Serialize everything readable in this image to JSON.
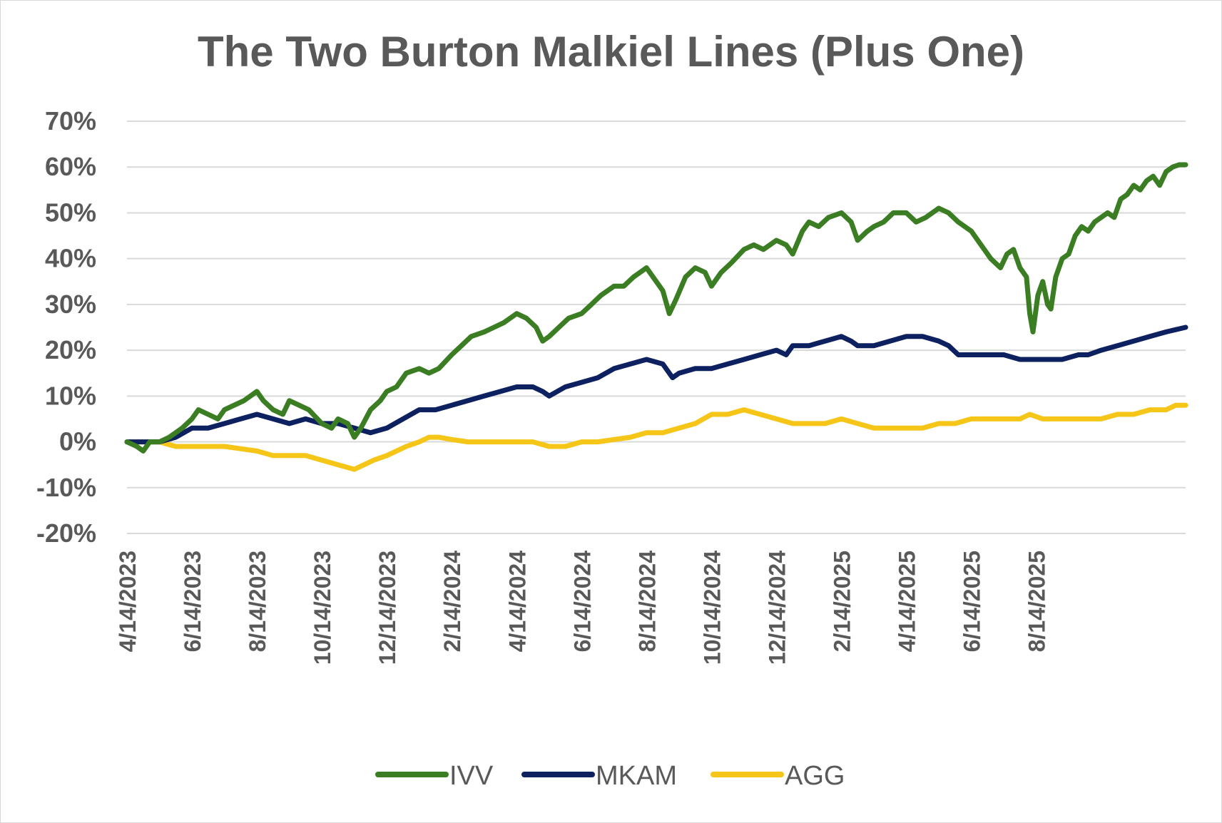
{
  "chart_data": {
    "type": "line",
    "title": "The Two Burton Malkiel Lines (Plus One)",
    "xlabel": "",
    "ylabel": "",
    "ylim": [
      -20,
      70
    ],
    "yticks": [
      70,
      60,
      50,
      40,
      30,
      20,
      10,
      0,
      -10,
      -20
    ],
    "ytick_labels": [
      "70%",
      "60%",
      "50%",
      "40%",
      "30%",
      "20%",
      "10%",
      "0%",
      "-10%",
      "-20%"
    ],
    "x_tick_labels": [
      "4/14/2023",
      "6/14/2023",
      "8/14/2023",
      "10/14/2023",
      "12/14/2023",
      "2/14/2024",
      "4/14/2024",
      "6/14/2024",
      "8/14/2024",
      "10/14/2024",
      "12/14/2024",
      "2/14/2025",
      "4/14/2025",
      "6/14/2025",
      "8/14/2025"
    ],
    "x_months": [
      0,
      2,
      4,
      6,
      8,
      10,
      12,
      14,
      16,
      18,
      20,
      22,
      24,
      26,
      28
    ],
    "grid": true,
    "legend_position": "bottom",
    "series": [
      {
        "name": "IVV",
        "color": "#3a7d22",
        "points": [
          [
            0,
            0
          ],
          [
            0.3,
            -1
          ],
          [
            0.5,
            -2
          ],
          [
            0.7,
            0
          ],
          [
            1,
            0
          ],
          [
            1.3,
            1
          ],
          [
            1.7,
            3
          ],
          [
            2,
            5
          ],
          [
            2.2,
            7
          ],
          [
            2.5,
            6
          ],
          [
            2.8,
            5
          ],
          [
            3,
            7
          ],
          [
            3.3,
            8
          ],
          [
            3.6,
            9
          ],
          [
            4,
            11
          ],
          [
            4.2,
            9
          ],
          [
            4.5,
            7
          ],
          [
            4.8,
            6
          ],
          [
            5,
            9
          ],
          [
            5.3,
            8
          ],
          [
            5.6,
            7
          ],
          [
            6,
            4
          ],
          [
            6.3,
            3
          ],
          [
            6.5,
            5
          ],
          [
            6.8,
            4
          ],
          [
            7,
            1
          ],
          [
            7.2,
            3
          ],
          [
            7.5,
            7
          ],
          [
            7.8,
            9
          ],
          [
            8,
            11
          ],
          [
            8.3,
            12
          ],
          [
            8.6,
            15
          ],
          [
            9,
            16
          ],
          [
            9.3,
            15
          ],
          [
            9.6,
            16
          ],
          [
            10,
            19
          ],
          [
            10.3,
            21
          ],
          [
            10.6,
            23
          ],
          [
            11,
            24
          ],
          [
            11.3,
            25
          ],
          [
            11.6,
            26
          ],
          [
            12,
            28
          ],
          [
            12.3,
            27
          ],
          [
            12.6,
            25
          ],
          [
            12.8,
            22
          ],
          [
            13,
            23
          ],
          [
            13.3,
            25
          ],
          [
            13.6,
            27
          ],
          [
            14,
            28
          ],
          [
            14.3,
            30
          ],
          [
            14.6,
            32
          ],
          [
            15,
            34
          ],
          [
            15.3,
            34
          ],
          [
            15.6,
            36
          ],
          [
            16,
            38
          ],
          [
            16.2,
            36
          ],
          [
            16.5,
            33
          ],
          [
            16.7,
            28
          ],
          [
            16.9,
            31
          ],
          [
            17.2,
            36
          ],
          [
            17.5,
            38
          ],
          [
            17.8,
            37
          ],
          [
            18,
            34
          ],
          [
            18.3,
            37
          ],
          [
            18.6,
            39
          ],
          [
            19,
            42
          ],
          [
            19.3,
            43
          ],
          [
            19.6,
            42
          ],
          [
            20,
            44
          ],
          [
            20.3,
            43
          ],
          [
            20.5,
            41
          ],
          [
            20.8,
            46
          ],
          [
            21,
            48
          ],
          [
            21.3,
            47
          ],
          [
            21.6,
            49
          ],
          [
            22,
            50
          ],
          [
            22.3,
            48
          ],
          [
            22.5,
            44
          ],
          [
            22.8,
            46
          ],
          [
            23,
            47
          ],
          [
            23.3,
            48
          ],
          [
            23.6,
            50
          ],
          [
            24,
            50
          ],
          [
            24.3,
            48
          ],
          [
            24.6,
            49
          ],
          [
            25,
            51
          ],
          [
            25.3,
            50
          ],
          [
            25.6,
            48
          ],
          [
            26,
            46
          ],
          [
            26.3,
            43
          ],
          [
            26.6,
            40
          ],
          [
            26.9,
            38
          ],
          [
            27.1,
            41
          ],
          [
            27.3,
            42
          ],
          [
            27.5,
            38
          ],
          [
            27.7,
            36
          ],
          [
            27.8,
            28
          ],
          [
            27.9,
            24
          ],
          [
            28.05,
            32
          ],
          [
            28.2,
            35
          ],
          [
            28.35,
            30
          ],
          [
            28.45,
            29
          ],
          [
            28.6,
            36
          ],
          [
            28.8,
            40
          ],
          [
            29,
            41
          ],
          [
            29.2,
            45
          ],
          [
            29.4,
            47
          ],
          [
            29.6,
            46
          ],
          [
            29.8,
            48
          ],
          [
            30,
            49
          ],
          [
            30.2,
            50
          ],
          [
            30.4,
            49
          ],
          [
            30.6,
            53
          ],
          [
            30.8,
            54
          ],
          [
            31,
            56
          ],
          [
            31.2,
            55
          ],
          [
            31.4,
            57
          ],
          [
            31.6,
            58
          ],
          [
            31.8,
            56
          ],
          [
            32,
            59
          ],
          [
            32.2,
            60
          ],
          [
            32.4,
            60.5
          ],
          [
            32.6,
            60.5
          ]
        ]
      },
      {
        "name": "MKAM",
        "color": "#0d2060",
        "points": [
          [
            0,
            0
          ],
          [
            0.5,
            0
          ],
          [
            1,
            0
          ],
          [
            1.5,
            1
          ],
          [
            2,
            3
          ],
          [
            2.5,
            3
          ],
          [
            3,
            4
          ],
          [
            3.5,
            5
          ],
          [
            4,
            6
          ],
          [
            4.5,
            5
          ],
          [
            5,
            4
          ],
          [
            5.5,
            5
          ],
          [
            6,
            4
          ],
          [
            6.5,
            4
          ],
          [
            7,
            3
          ],
          [
            7.5,
            2
          ],
          [
            8,
            3
          ],
          [
            8.5,
            5
          ],
          [
            9,
            7
          ],
          [
            9.5,
            7
          ],
          [
            10,
            8
          ],
          [
            10.5,
            9
          ],
          [
            11,
            10
          ],
          [
            11.5,
            11
          ],
          [
            12,
            12
          ],
          [
            12.5,
            12
          ],
          [
            12.8,
            11
          ],
          [
            13,
            10
          ],
          [
            13.5,
            12
          ],
          [
            14,
            13
          ],
          [
            14.5,
            14
          ],
          [
            15,
            16
          ],
          [
            15.5,
            17
          ],
          [
            16,
            18
          ],
          [
            16.5,
            17
          ],
          [
            16.8,
            14
          ],
          [
            17,
            15
          ],
          [
            17.5,
            16
          ],
          [
            18,
            16
          ],
          [
            18.5,
            17
          ],
          [
            19,
            18
          ],
          [
            19.5,
            19
          ],
          [
            20,
            20
          ],
          [
            20.3,
            19
          ],
          [
            20.5,
            21
          ],
          [
            21,
            21
          ],
          [
            21.5,
            22
          ],
          [
            22,
            23
          ],
          [
            22.3,
            22
          ],
          [
            22.5,
            21
          ],
          [
            23,
            21
          ],
          [
            23.5,
            22
          ],
          [
            24,
            23
          ],
          [
            24.5,
            23
          ],
          [
            25,
            22
          ],
          [
            25.3,
            21
          ],
          [
            25.6,
            19
          ],
          [
            26,
            19
          ],
          [
            26.5,
            19
          ],
          [
            27,
            19
          ],
          [
            27.5,
            18
          ],
          [
            27.8,
            18
          ],
          [
            28.2,
            18
          ],
          [
            28.8,
            18
          ],
          [
            29.3,
            19
          ],
          [
            29.6,
            19
          ],
          [
            30,
            20
          ],
          [
            30.5,
            21
          ],
          [
            31,
            22
          ],
          [
            31.5,
            23
          ],
          [
            32,
            24
          ],
          [
            32.3,
            24.5
          ],
          [
            32.6,
            25
          ]
        ]
      },
      {
        "name": "AGG",
        "color": "#f5c518",
        "points": [
          [
            0,
            0
          ],
          [
            0.5,
            0
          ],
          [
            1,
            0
          ],
          [
            1.5,
            -1
          ],
          [
            2,
            -1
          ],
          [
            2.5,
            -1
          ],
          [
            3,
            -1
          ],
          [
            3.5,
            -1.5
          ],
          [
            4,
            -2
          ],
          [
            4.5,
            -3
          ],
          [
            5,
            -3
          ],
          [
            5.5,
            -3
          ],
          [
            6,
            -4
          ],
          [
            6.5,
            -5
          ],
          [
            7,
            -6
          ],
          [
            7.3,
            -5
          ],
          [
            7.6,
            -4
          ],
          [
            8,
            -3
          ],
          [
            8.3,
            -2
          ],
          [
            8.6,
            -1
          ],
          [
            9,
            0
          ],
          [
            9.3,
            1
          ],
          [
            9.6,
            1
          ],
          [
            10,
            0.5
          ],
          [
            10.5,
            0
          ],
          [
            11,
            0
          ],
          [
            11.5,
            0
          ],
          [
            12,
            0
          ],
          [
            12.5,
            0
          ],
          [
            13,
            -1
          ],
          [
            13.5,
            -1
          ],
          [
            14,
            0
          ],
          [
            14.5,
            0
          ],
          [
            15,
            0.5
          ],
          [
            15.5,
            1
          ],
          [
            16,
            2
          ],
          [
            16.5,
            2
          ],
          [
            17,
            3
          ],
          [
            17.5,
            4
          ],
          [
            18,
            6
          ],
          [
            18.5,
            6
          ],
          [
            19,
            7
          ],
          [
            19.5,
            6
          ],
          [
            20,
            5
          ],
          [
            20.5,
            4
          ],
          [
            21,
            4
          ],
          [
            21.5,
            4
          ],
          [
            22,
            5
          ],
          [
            22.5,
            4
          ],
          [
            23,
            3
          ],
          [
            23.5,
            3
          ],
          [
            24,
            3
          ],
          [
            24.5,
            3
          ],
          [
            25,
            4
          ],
          [
            25.5,
            4
          ],
          [
            26,
            5
          ],
          [
            26.5,
            5
          ],
          [
            27,
            5
          ],
          [
            27.5,
            5
          ],
          [
            27.8,
            6
          ],
          [
            28.2,
            5
          ],
          [
            28.6,
            5
          ],
          [
            29,
            5
          ],
          [
            29.5,
            5
          ],
          [
            30,
            5
          ],
          [
            30.5,
            6
          ],
          [
            31,
            6
          ],
          [
            31.5,
            7
          ],
          [
            32,
            7
          ],
          [
            32.3,
            8
          ],
          [
            32.6,
            8
          ]
        ]
      }
    ]
  }
}
